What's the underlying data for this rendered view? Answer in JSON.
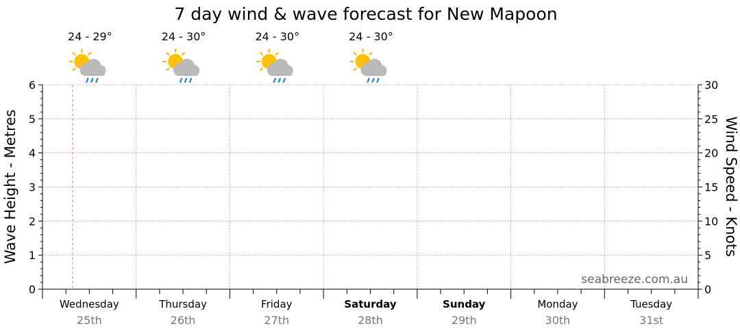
{
  "chart_data": {
    "type": "line",
    "title": "7 day wind & wave forecast for New Mapoon",
    "ylabel_left": "Wave Height - Metres",
    "ylabel_right": "Wind Speed - Knots",
    "ylim_left": [
      0,
      6
    ],
    "ylim_right": [
      0,
      30
    ],
    "yticks_left": [
      "0",
      "1",
      "2",
      "3",
      "4",
      "5",
      "6"
    ],
    "yticks_right": [
      "0",
      "5",
      "10",
      "15",
      "20",
      "25",
      "30"
    ],
    "grid": true,
    "watermark": "seabreeze.com.au",
    "days": [
      {
        "name": "Wednesday",
        "date": "25th",
        "bold": false,
        "temp": "24 - 29°",
        "icon": "sun-cloud-rain-icon"
      },
      {
        "name": "Thursday",
        "date": "26th",
        "bold": false,
        "temp": "24 - 30°",
        "icon": "sun-cloud-rain-icon"
      },
      {
        "name": "Friday",
        "date": "27th",
        "bold": false,
        "temp": "24 - 30°",
        "icon": "sun-cloud-rain-icon"
      },
      {
        "name": "Saturday",
        "date": "28th",
        "bold": true,
        "temp": "24 - 30°",
        "icon": "sun-cloud-rain-icon"
      },
      {
        "name": "Sunday",
        "date": "29th",
        "bold": true,
        "temp": "",
        "icon": ""
      },
      {
        "name": "Monday",
        "date": "30th",
        "bold": false,
        "temp": "",
        "icon": ""
      },
      {
        "name": "Tuesday",
        "date": "31st",
        "bold": false,
        "temp": "",
        "icon": ""
      }
    ],
    "series": [],
    "colors": {
      "sun": "#FFC107",
      "sun_ray": "#F5B400",
      "cloud": "#B9B9B9",
      "rain": "#1E7BE0",
      "now_line": "#F08080",
      "grid": "#888888",
      "date_text": "#777777",
      "watermark": "#666666"
    }
  }
}
